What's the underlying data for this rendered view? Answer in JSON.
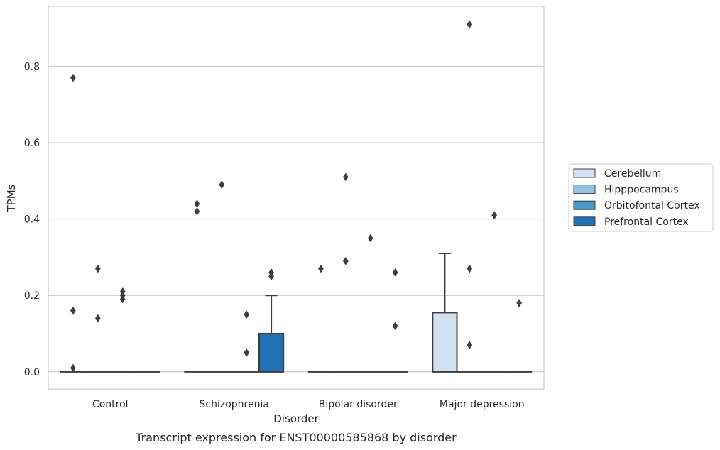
{
  "chart_data": {
    "type": "box",
    "title": "",
    "caption": "Transcript expression for ENST00000585868 by disorder",
    "xlabel": "Disorder",
    "ylabel": "TPMs",
    "ylim": [
      -0.045,
      0.957
    ],
    "yticks": [
      0.0,
      0.2,
      0.4,
      0.6,
      0.8
    ],
    "ytick_labels": [
      "0.0",
      "0.2",
      "0.4",
      "0.6",
      "0.8"
    ],
    "grid": "horizontal",
    "legend_position": "right",
    "categories": [
      "Control",
      "Schizophrenia",
      "Bipolar disorder",
      "Major depression"
    ],
    "series": [
      {
        "name": "Cerebellum",
        "color": "#d0e1f2"
      },
      {
        "name": "Hipppocampus",
        "color": "#94c4df"
      },
      {
        "name": "Orbitofontal Cortex",
        "color": "#4a98c9"
      },
      {
        "name": "Prefrontal Cortex",
        "color": "#2171b5"
      }
    ],
    "boxes": [
      {
        "category": "Control",
        "series": "Cerebellum",
        "q1": 0,
        "median": 0,
        "q3": 0,
        "whisker_low": 0,
        "whisker_high": 0,
        "outliers": [
          0.16,
          0.01,
          0.77
        ]
      },
      {
        "category": "Control",
        "series": "Hipppocampus",
        "q1": 0,
        "median": 0,
        "q3": 0,
        "whisker_low": 0,
        "whisker_high": 0,
        "outliers": [
          0.27,
          0.14
        ]
      },
      {
        "category": "Control",
        "series": "Orbitofontal Cortex",
        "q1": 0,
        "median": 0,
        "q3": 0,
        "whisker_low": 0,
        "whisker_high": 0,
        "outliers": [
          0.21,
          0.2,
          0.19
        ]
      },
      {
        "category": "Control",
        "series": "Prefrontal Cortex",
        "q1": 0,
        "median": 0,
        "q3": 0,
        "whisker_low": 0,
        "whisker_high": 0,
        "outliers": []
      },
      {
        "category": "Schizophrenia",
        "series": "Cerebellum",
        "q1": 0,
        "median": 0,
        "q3": 0,
        "whisker_low": 0,
        "whisker_high": 0,
        "outliers": [
          0.44,
          0.42
        ]
      },
      {
        "category": "Schizophrenia",
        "series": "Hipppocampus",
        "q1": 0,
        "median": 0,
        "q3": 0,
        "whisker_low": 0,
        "whisker_high": 0,
        "outliers": [
          0.49
        ]
      },
      {
        "category": "Schizophrenia",
        "series": "Orbitofontal Cortex",
        "q1": 0,
        "median": 0,
        "q3": 0,
        "whisker_low": 0,
        "whisker_high": 0,
        "outliers": [
          0.15,
          0.05
        ]
      },
      {
        "category": "Schizophrenia",
        "series": "Prefrontal Cortex",
        "q1": 0,
        "median": 0,
        "q3": 0.1,
        "whisker_low": 0,
        "whisker_high": 0.2,
        "outliers": [
          0.26,
          0.25
        ]
      },
      {
        "category": "Bipolar disorder",
        "series": "Cerebellum",
        "q1": 0,
        "median": 0,
        "q3": 0,
        "whisker_low": 0,
        "whisker_high": 0,
        "outliers": [
          0.27
        ]
      },
      {
        "category": "Bipolar disorder",
        "series": "Hipppocampus",
        "q1": 0,
        "median": 0,
        "q3": 0,
        "whisker_low": 0,
        "whisker_high": 0,
        "outliers": [
          0.29,
          0.51
        ]
      },
      {
        "category": "Bipolar disorder",
        "series": "Orbitofontal Cortex",
        "q1": 0,
        "median": 0,
        "q3": 0,
        "whisker_low": 0,
        "whisker_high": 0,
        "outliers": [
          0.35
        ]
      },
      {
        "category": "Bipolar disorder",
        "series": "Prefrontal Cortex",
        "q1": 0,
        "median": 0,
        "q3": 0,
        "whisker_low": 0,
        "whisker_high": 0,
        "outliers": [
          0.26,
          0.12
        ]
      },
      {
        "category": "Major depression",
        "series": "Cerebellum",
        "q1": 0,
        "median": 0,
        "q3": 0.155,
        "whisker_low": 0,
        "whisker_high": 0.31,
        "outliers": []
      },
      {
        "category": "Major depression",
        "series": "Hipppocampus",
        "q1": 0,
        "median": 0,
        "q3": 0,
        "whisker_low": 0,
        "whisker_high": 0,
        "outliers": [
          0.91,
          0.27,
          0.07
        ]
      },
      {
        "category": "Major depression",
        "series": "Orbitofontal Cortex",
        "q1": 0,
        "median": 0,
        "q3": 0,
        "whisker_low": 0,
        "whisker_high": 0,
        "outliers": [
          0.41
        ]
      },
      {
        "category": "Major depression",
        "series": "Prefrontal Cortex",
        "q1": 0,
        "median": 0,
        "q3": 0,
        "whisker_low": 0,
        "whisker_high": 0,
        "outliers": [
          0.18
        ]
      }
    ]
  }
}
